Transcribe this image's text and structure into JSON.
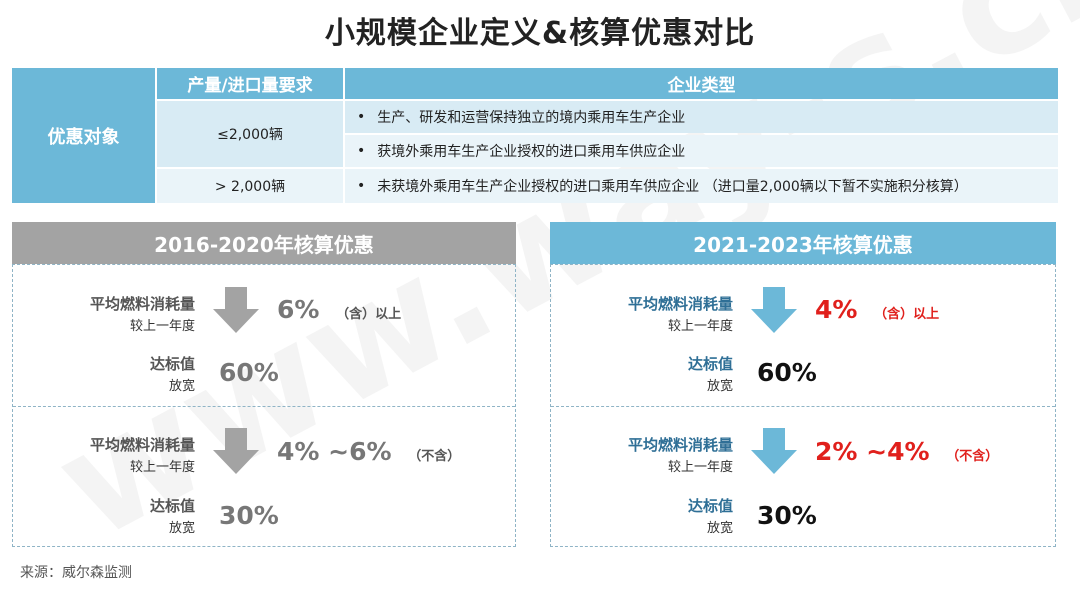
{
  "title": "小规模企业定义&核算优惠对比",
  "watermark": "www.way-s.cn",
  "table": {
    "header_req": "产量/进口量要求",
    "header_type": "企业类型",
    "row_label": "优惠对象",
    "req_1": "≤2,000辆",
    "req_2": "> 2,000辆",
    "type_1": "生产、研发和运营保持独立的境内乘用车生产企业",
    "type_2": "获境外乘用车生产企业授权的进口乘用车供应企业",
    "type_3": "未获境外乘用车生产企业授权的进口乘用车供应企业 （进口量2,000辆以下暂不实施积分核算）",
    "bullet": "•"
  },
  "left": {
    "header": "2016-2020年核算优惠",
    "color": "#a3a3a3",
    "block1": {
      "label_main": "平均燃料消耗量",
      "label_sub": "较上一年度",
      "value": "6%",
      "note": "（含）以上",
      "std_main": "达标值",
      "std_sub": "放宽",
      "std_value": "60%"
    },
    "block2": {
      "label_main": "平均燃料消耗量",
      "label_sub": "较上一年度",
      "value": "4% ~6%",
      "note": "（不含）",
      "std_main": "达标值",
      "std_sub": "放宽",
      "std_value": "30%"
    }
  },
  "right": {
    "header": "2021-2023年核算优惠",
    "color": "#6cb8d8",
    "block1": {
      "label_main": "平均燃料消耗量",
      "label_sub": "较上一年度",
      "value": "4%",
      "note": "（含）以上",
      "std_main": "达标值",
      "std_sub": "放宽",
      "std_value": "60%"
    },
    "block2": {
      "label_main": "平均燃料消耗量",
      "label_sub": "较上一年度",
      "value": "2% ~4%",
      "note": "（不含）",
      "std_main": "达标值",
      "std_sub": "放宽",
      "std_value": "30%"
    }
  },
  "source": "来源：威尔森监测",
  "colors": {
    "teal": "#6cb8d8",
    "gray": "#a3a3a3",
    "red": "#e0201c",
    "label_blue": "#2f6f96"
  }
}
